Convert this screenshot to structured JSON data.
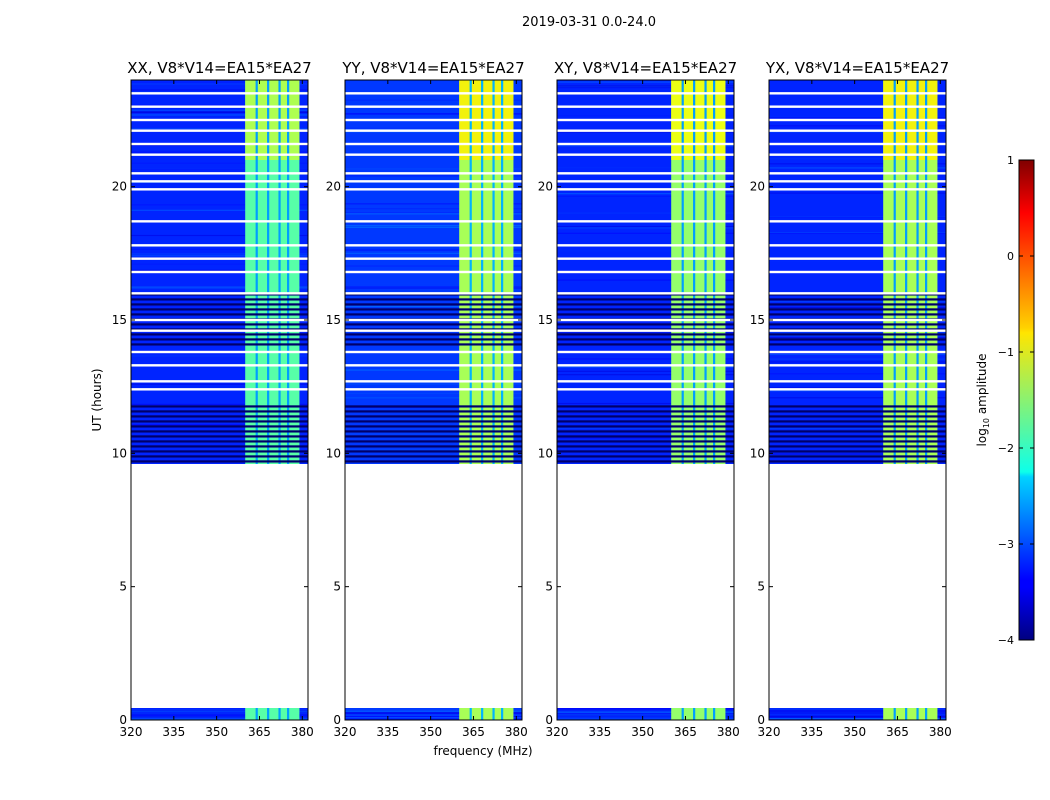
{
  "chart_data": {
    "type": "heatmap",
    "suptitle": "2019-03-31 0.0-24.0",
    "xlabel": "frequency (MHz)",
    "ylabel": "UT (hours)",
    "xlim": [
      320,
      382
    ],
    "ylim": [
      0,
      24
    ],
    "xticks": [
      320,
      335,
      350,
      365,
      380
    ],
    "xtick_labels": [
      "320",
      "335",
      "350",
      "365",
      "380"
    ],
    "yticks": [
      0,
      5,
      10,
      15,
      20
    ],
    "ytick_labels": [
      "0",
      "5",
      "10",
      "15",
      "20"
    ],
    "panels": [
      {
        "title": "XX, V8*V14=EA15*EA27",
        "band_level": -1.7,
        "bg_level": -3.2
      },
      {
        "title": "YY, V8*V14=EA15*EA27",
        "band_level": -1.3,
        "bg_level": -3.1
      },
      {
        "title": "XY, V8*V14=EA15*EA27",
        "band_level": -1.4,
        "bg_level": -3.2
      },
      {
        "title": "YX, V8*V14=EA15*EA27",
        "band_level": -1.3,
        "bg_level": -3.2
      }
    ],
    "data_ut_ranges": [
      [
        0.0,
        0.45
      ],
      [
        9.6,
        24.0
      ]
    ],
    "rfi_band_mhz": [
      360,
      379
    ],
    "rfi_subband_edges_mhz": [
      364,
      368,
      372,
      375
    ],
    "dense_flag_ut_ranges": [
      [
        9.6,
        11.8
      ],
      [
        14.0,
        16.0
      ]
    ],
    "flag_lines_ut": [
      12.4,
      12.7,
      13.3,
      13.8,
      14.6,
      15.0,
      16.0,
      16.8,
      17.3,
      17.8,
      18.7,
      19.9,
      20.2,
      20.5,
      21.2,
      21.6,
      22.1,
      22.5,
      23.0,
      23.5
    ],
    "colorbar": {
      "label": "log10 amplitude",
      "min": -4,
      "max": 1,
      "ticks": [
        1,
        0,
        -1,
        -2,
        -3,
        -4
      ],
      "tick_labels": [
        "1",
        "0",
        "−1",
        "−2",
        "−3",
        "−4"
      ]
    }
  }
}
